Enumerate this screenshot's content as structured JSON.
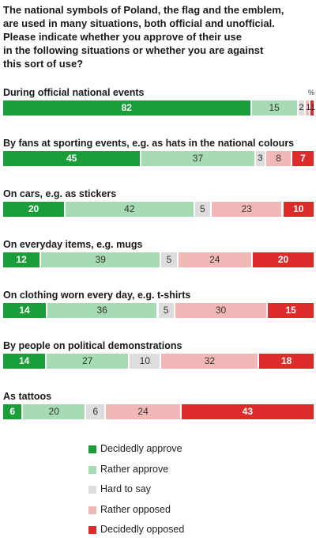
{
  "page_title": "The national symbols of Poland, the flag and the emblem,\nare used in many situations, both official and unofficial.\nPlease indicate whether you approve of their use\nin the following situations or whether you are against\nthis sort of use?",
  "unit_label": "%",
  "colors": {
    "Decidedly approve": "#1a9e3a",
    "Rather approve": "#a6dbb4",
    "Hard to say": "#dddddd",
    "Rather opposed": "#f2b8b8",
    "Decidedly opposed": "#dd2a2a"
  },
  "chart_data": {
    "type": "bar",
    "orientation": "horizontal-stacked-100",
    "title": "The national symbols of Poland, the flag and the emblem,\nare used in many situations, both official and unofficial.\nPlease indicate whether you approve of their use\nin the following situations or whether you are against\nthis sort of use?",
    "unit": "%",
    "categories": [
      "During official national events",
      "By fans at sporting events, e.g. as hats in the national colours",
      "On cars, e.g. as stickers",
      "On everyday items, e.g. mugs",
      "On clothing worn every day, e.g. t-shirts",
      "By people on political demonstrations",
      "As tattoos"
    ],
    "series": [
      {
        "name": "Decidedly approve",
        "values": [
          82,
          45,
          20,
          12,
          14,
          14,
          6
        ]
      },
      {
        "name": "Rather approve",
        "values": [
          15,
          37,
          42,
          39,
          36,
          27,
          20
        ]
      },
      {
        "name": "Hard to say",
        "values": [
          2,
          3,
          5,
          5,
          5,
          10,
          6
        ]
      },
      {
        "name": "Rather opposed",
        "values": [
          1,
          8,
          23,
          24,
          30,
          32,
          24
        ]
      },
      {
        "name": "Decidedly opposed",
        "values": [
          1,
          7,
          10,
          20,
          15,
          18,
          43
        ]
      }
    ],
    "legend": {
      "position": "bottom"
    },
    "grid": false
  }
}
